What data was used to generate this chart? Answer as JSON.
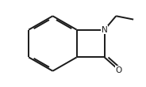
{
  "background": "#ffffff",
  "line_color": "#1a1a1a",
  "lw": 1.4,
  "inner_off": 0.018,
  "shrink": 0.18,
  "N_label_fontsize": 7.5,
  "O_label_fontsize": 7.5
}
